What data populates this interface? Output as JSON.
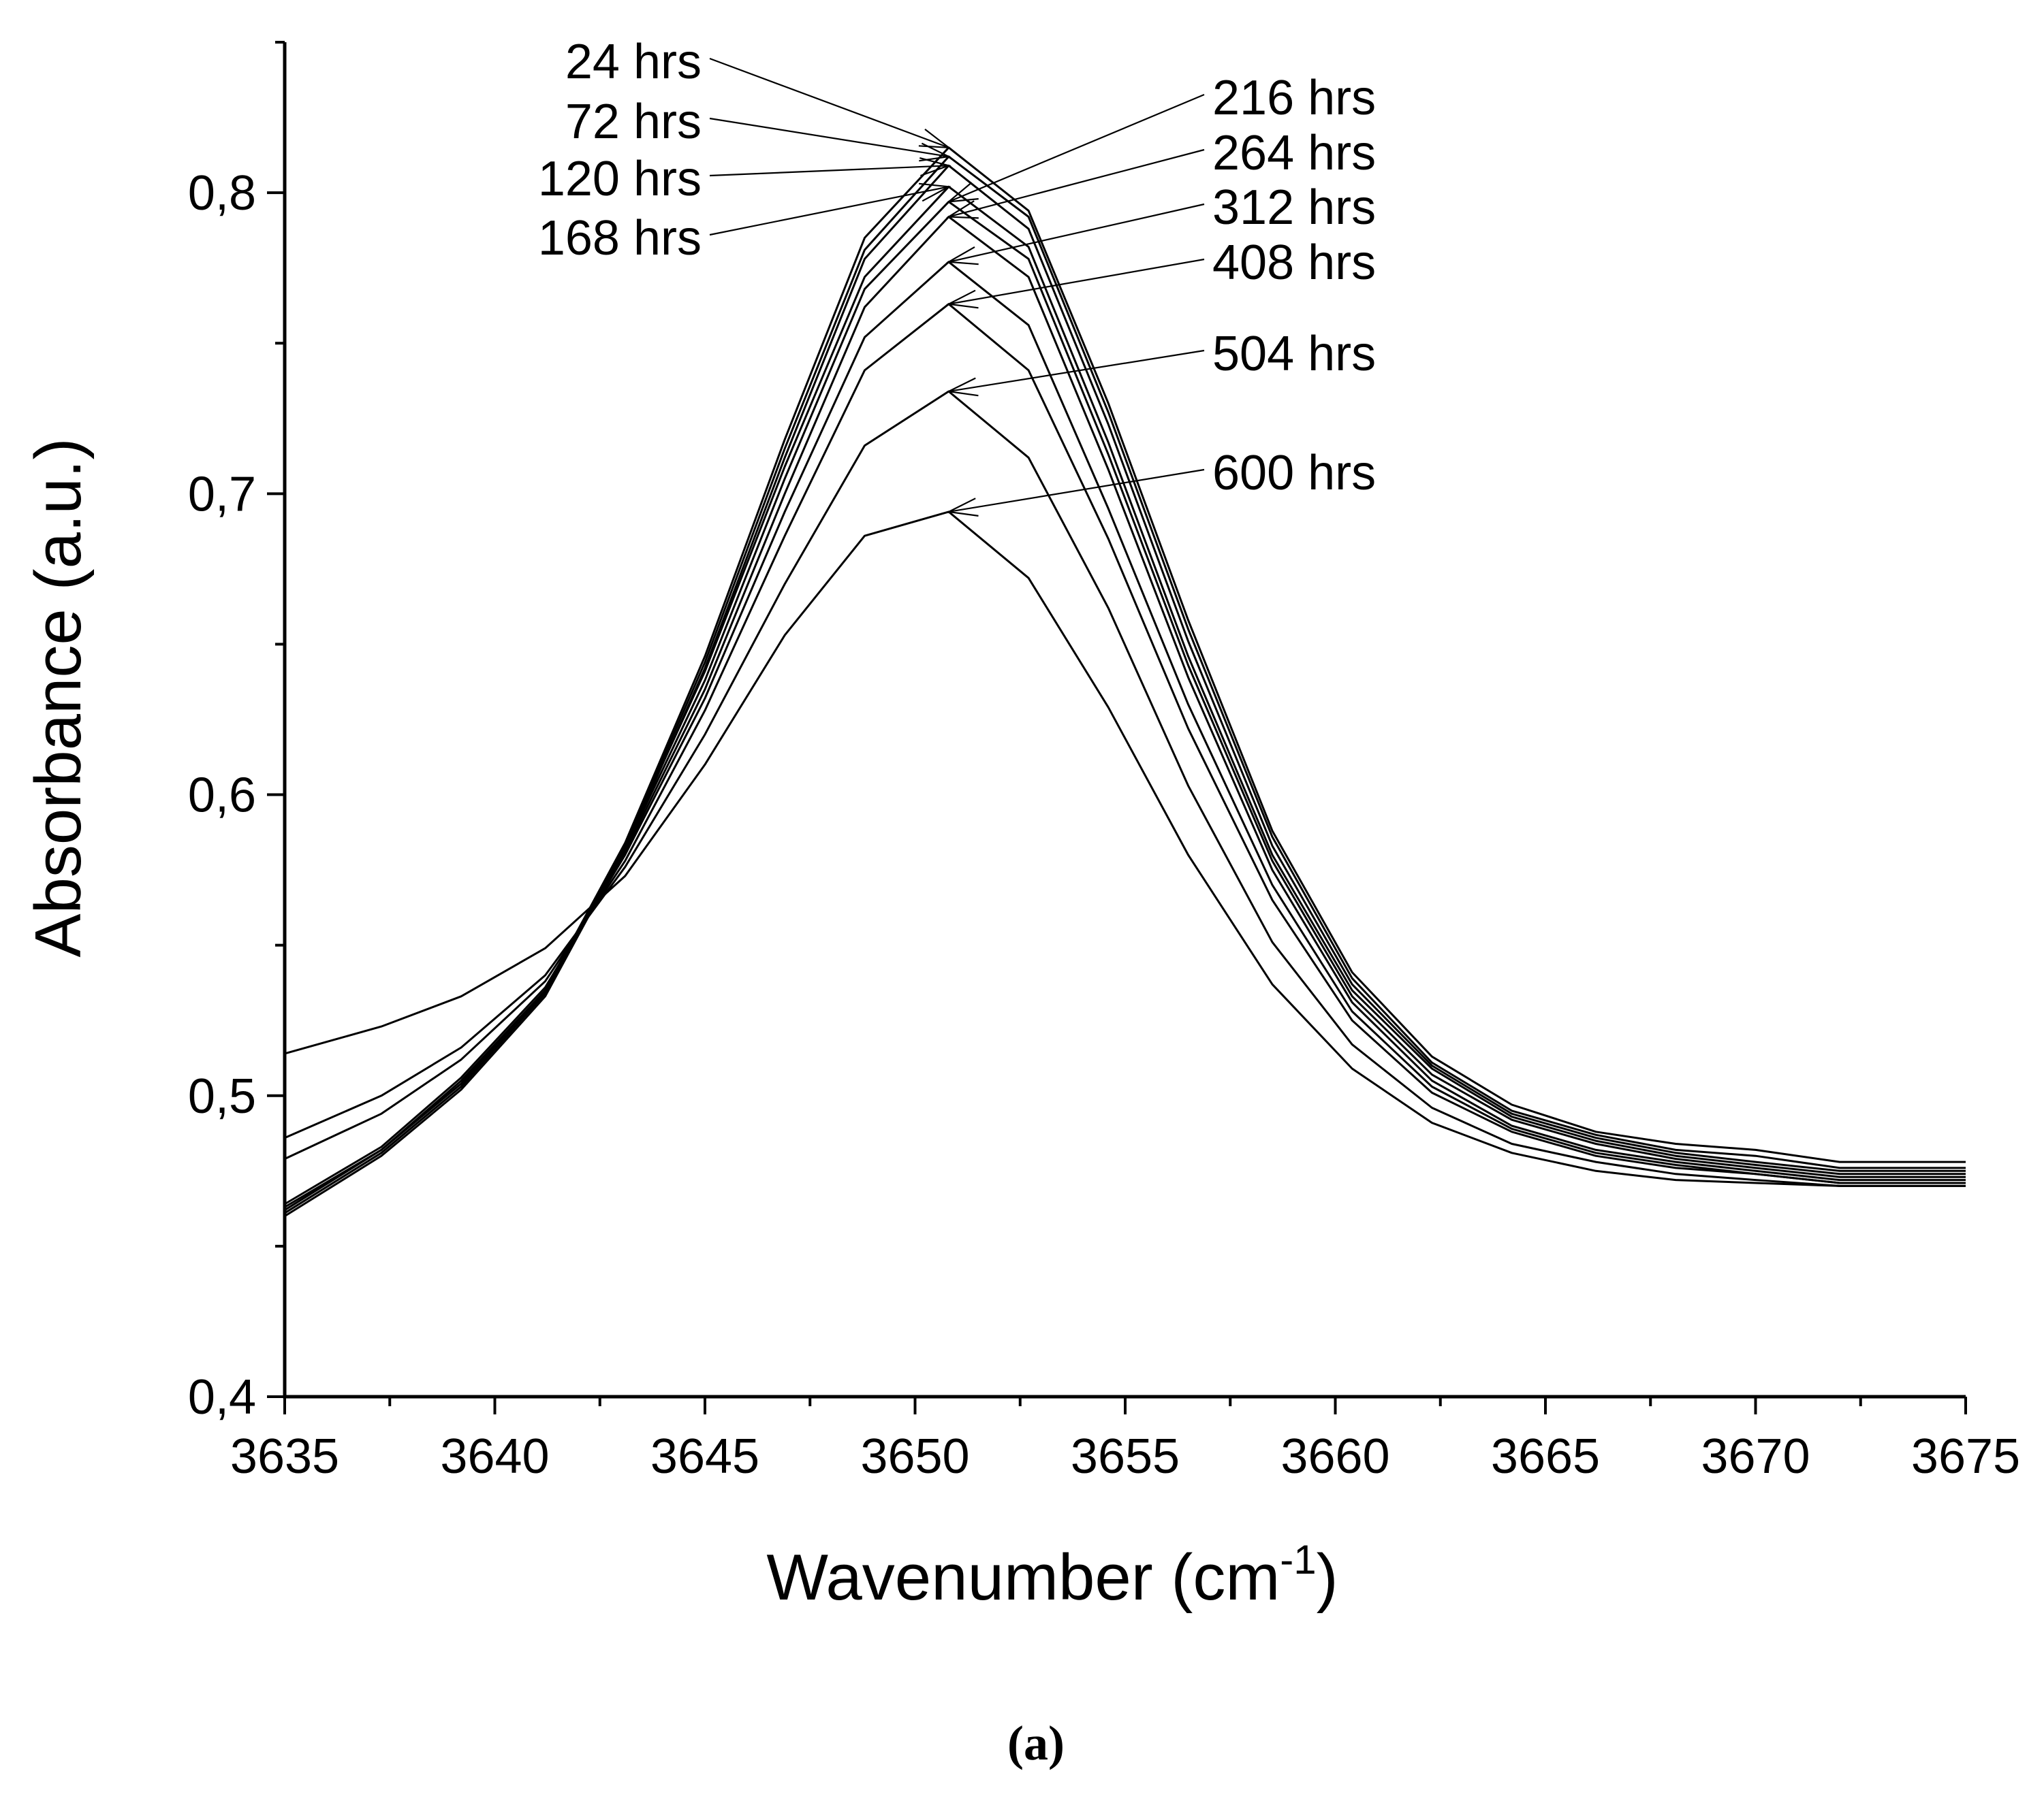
{
  "chart_data": {
    "type": "line",
    "title": "",
    "xlabel": "Wavenumber (cm",
    "xlabel_superscript": "-1",
    "xlabel_close": ")",
    "ylabel": "Absorbance (a.u.)",
    "panel_label": "(a)",
    "xlim": [
      3635,
      3675
    ],
    "ylim": [
      0.4,
      0.85
    ],
    "xticks": [
      3635,
      3640,
      3645,
      3650,
      3655,
      3660,
      3665,
      3670,
      3675
    ],
    "xtick_labels": [
      "3635",
      "3640",
      "3645",
      "3650",
      "3655",
      "3660",
      "3665",
      "3670",
      "3675"
    ],
    "yticks": [
      0.4,
      0.5,
      0.6,
      0.7,
      0.8
    ],
    "ytick_labels": [
      "0,4",
      "0,5",
      "0,6",
      "0,7",
      "0,8"
    ],
    "grid": false,
    "legend": "annotation labels with leader arrows pointing to each curve peak",
    "x": [
      3635.0,
      3637.3,
      3639.2,
      3641.2,
      3643.1,
      3645.0,
      3646.9,
      3648.8,
      3650.8,
      3652.7,
      3654.6,
      3656.5,
      3658.5,
      3660.4,
      3662.3,
      3664.2,
      3666.2,
      3668.1,
      3670.0,
      3672.0,
      3675.0
    ],
    "series": [
      {
        "name": "24 hrs",
        "values": [
          0.462,
          0.482,
          0.504,
          0.535,
          0.584,
          0.646,
          0.718,
          0.785,
          0.815,
          0.794,
          0.73,
          0.658,
          0.588,
          0.541,
          0.513,
          0.497,
          0.488,
          0.484,
          0.482,
          0.478,
          0.478
        ]
      },
      {
        "name": "72 hrs",
        "values": [
          0.461,
          0.481,
          0.503,
          0.534,
          0.583,
          0.644,
          0.715,
          0.781,
          0.812,
          0.792,
          0.727,
          0.655,
          0.586,
          0.539,
          0.511,
          0.495,
          0.487,
          0.482,
          0.48,
          0.476,
          0.476
        ]
      },
      {
        "name": "120 hrs",
        "values": [
          0.46,
          0.48,
          0.502,
          0.533,
          0.582,
          0.642,
          0.712,
          0.778,
          0.809,
          0.788,
          0.723,
          0.651,
          0.583,
          0.537,
          0.51,
          0.494,
          0.486,
          0.481,
          0.478,
          0.475,
          0.475
        ]
      },
      {
        "name": "168 hrs",
        "values": [
          0.461,
          0.481,
          0.503,
          0.534,
          0.583,
          0.641,
          0.709,
          0.772,
          0.802,
          0.782,
          0.717,
          0.646,
          0.58,
          0.535,
          0.509,
          0.493,
          0.485,
          0.48,
          0.477,
          0.474,
          0.474
        ]
      },
      {
        "name": "216 hrs",
        "values": [
          0.462,
          0.482,
          0.504,
          0.535,
          0.582,
          0.638,
          0.705,
          0.768,
          0.797,
          0.778,
          0.713,
          0.643,
          0.578,
          0.533,
          0.507,
          0.492,
          0.484,
          0.479,
          0.476,
          0.473,
          0.473
        ]
      },
      {
        "name": "264 hrs",
        "values": [
          0.463,
          0.482,
          0.505,
          0.535,
          0.581,
          0.635,
          0.7,
          0.762,
          0.792,
          0.772,
          0.708,
          0.639,
          0.575,
          0.531,
          0.505,
          0.49,
          0.482,
          0.478,
          0.475,
          0.472,
          0.472
        ]
      },
      {
        "name": "312 hrs",
        "values": [
          0.464,
          0.483,
          0.506,
          0.536,
          0.58,
          0.632,
          0.694,
          0.752,
          0.777,
          0.756,
          0.695,
          0.63,
          0.57,
          0.528,
          0.503,
          0.489,
          0.481,
          0.477,
          0.474,
          0.471,
          0.471
        ]
      },
      {
        "name": "408 hrs",
        "values": [
          0.479,
          0.494,
          0.512,
          0.538,
          0.578,
          0.628,
          0.686,
          0.741,
          0.763,
          0.741,
          0.685,
          0.622,
          0.565,
          0.525,
          0.501,
          0.488,
          0.48,
          0.476,
          0.474,
          0.471,
          0.471
        ]
      },
      {
        "name": "504 hrs",
        "values": [
          0.486,
          0.5,
          0.516,
          0.54,
          0.576,
          0.62,
          0.67,
          0.716,
          0.734,
          0.712,
          0.662,
          0.603,
          0.551,
          0.517,
          0.496,
          0.484,
          0.478,
          0.474,
          0.472,
          0.47,
          0.47
        ]
      },
      {
        "name": "600 hrs",
        "values": [
          0.514,
          0.523,
          0.533,
          0.549,
          0.573,
          0.61,
          0.653,
          0.686,
          0.694,
          0.672,
          0.629,
          0.58,
          0.537,
          0.509,
          0.491,
          0.481,
          0.475,
          0.472,
          0.471,
          0.47,
          0.47
        ]
      }
    ]
  }
}
